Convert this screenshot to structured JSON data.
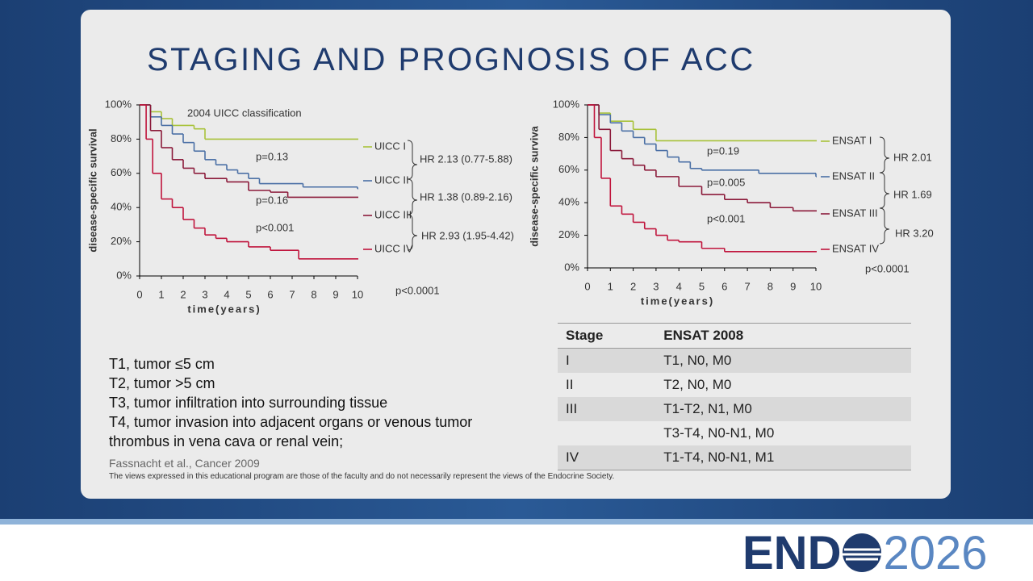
{
  "title": "STAGING AND PROGNOSIS OF ACC",
  "charts": [
    {
      "type": "line",
      "title": "2004 UICC classification",
      "x_label": "time(years)",
      "y_label": "disease-specific survival",
      "xlim": [
        0,
        10
      ],
      "ylim": [
        0,
        100
      ],
      "xticks": [
        0,
        1,
        2,
        3,
        4,
        5,
        6,
        7,
        8,
        9,
        10
      ],
      "yticks": [
        {
          "value": 0,
          "label": "0%"
        },
        {
          "value": 20,
          "label": "20%"
        },
        {
          "value": 40,
          "label": "40%"
        },
        {
          "value": 60,
          "label": "60%"
        },
        {
          "value": 80,
          "label": "80%"
        },
        {
          "value": 100,
          "label": "100%"
        }
      ],
      "series": [
        {
          "name": "UICC I",
          "color": "#a8c23a",
          "x": [
            0,
            0.5,
            1,
            1.5,
            2.5,
            3,
            10
          ],
          "values": [
            100,
            96,
            92,
            88,
            86,
            80,
            80
          ]
        },
        {
          "name": "UICC II",
          "color": "#4a6fa5",
          "x": [
            0,
            0.5,
            1,
            1.5,
            2,
            2.5,
            3,
            3.5,
            4,
            4.5,
            5,
            5.5,
            7.5,
            10
          ],
          "values": [
            100,
            93,
            88,
            83,
            78,
            73,
            68,
            65,
            62,
            60,
            57,
            54,
            52,
            51
          ]
        },
        {
          "name": "UICC III",
          "color": "#8b1a3a",
          "x": [
            0,
            0.5,
            1,
            1.5,
            2,
            2.5,
            3,
            4,
            5,
            6,
            6.8,
            10
          ],
          "values": [
            100,
            85,
            75,
            68,
            63,
            60,
            57,
            55,
            50,
            49,
            46,
            46
          ]
        },
        {
          "name": "UICC IV",
          "color": "#c0143c",
          "x": [
            0,
            0.3,
            0.6,
            1,
            1.5,
            2,
            2.5,
            3,
            3.5,
            4,
            5,
            6,
            7.3,
            10
          ],
          "values": [
            100,
            80,
            60,
            45,
            40,
            33,
            28,
            24,
            22,
            20,
            17,
            15,
            10,
            10
          ]
        }
      ],
      "annotations": [
        "p=0.13",
        "p=0.16",
        "p<0.001",
        "HR 2.13 (0.77-5.88)",
        "HR 1.38 (0.89-2.16)",
        "HR 2.93 (1.95-4.42)",
        "p<0.0001"
      ]
    },
    {
      "type": "line",
      "x_label": "time(years)",
      "y_label": "disease-specific surviva",
      "xlim": [
        0,
        10
      ],
      "ylim": [
        0,
        100
      ],
      "xticks": [
        0,
        1,
        2,
        3,
        4,
        5,
        6,
        7,
        8,
        9,
        10
      ],
      "yticks": [
        {
          "value": 0,
          "label": "0%"
        },
        {
          "value": 20,
          "label": "20%"
        },
        {
          "value": 40,
          "label": "40%"
        },
        {
          "value": 60,
          "label": "60%"
        },
        {
          "value": 80,
          "label": "80%"
        },
        {
          "value": 100,
          "label": "100%"
        }
      ],
      "series": [
        {
          "name": "ENSAT I",
          "color": "#a8c23a",
          "x": [
            0,
            0.5,
            1,
            2,
            3,
            10
          ],
          "values": [
            100,
            95,
            90,
            85,
            78,
            78
          ]
        },
        {
          "name": "ENSAT II",
          "color": "#4a6fa5",
          "x": [
            0,
            0.5,
            1,
            1.5,
            2,
            2.5,
            3,
            3.5,
            4,
            4.5,
            5,
            7.5,
            10
          ],
          "values": [
            100,
            94,
            89,
            84,
            80,
            76,
            72,
            68,
            65,
            61,
            60,
            58,
            56
          ]
        },
        {
          "name": "ENSAT III",
          "color": "#8b1a3a",
          "x": [
            0,
            0.5,
            1,
            1.5,
            2,
            2.5,
            3,
            4,
            5,
            6,
            7,
            8,
            9,
            10
          ],
          "values": [
            100,
            85,
            72,
            67,
            63,
            60,
            56,
            50,
            45,
            42,
            40,
            37,
            35,
            35
          ]
        },
        {
          "name": "ENSAT IV",
          "color": "#c0143c",
          "x": [
            0,
            0.3,
            0.6,
            1,
            1.5,
            2,
            2.5,
            3,
            3.5,
            4,
            5,
            6,
            10
          ],
          "values": [
            100,
            80,
            55,
            38,
            33,
            28,
            24,
            20,
            17,
            16,
            12,
            10,
            10
          ]
        }
      ],
      "annotations": [
        "p=0.19",
        "p=0.005",
        "p<0.001",
        "HR 2.01",
        "HR 1.69",
        "HR 3.20",
        "p<0.0001"
      ]
    }
  ],
  "stages": [
    "T1, tumor ≤5 cm",
    "T2, tumor >5 cm",
    "T3, tumor infiltration into surrounding tissue",
    "T4, tumor invasion into adjacent organs or venous tumor thrombus in vena cava or renal vein;"
  ],
  "citation": "Fassnacht et al., Cancer 2009",
  "table": {
    "header": [
      "Stage",
      "ENSAT 2008"
    ],
    "rows": [
      [
        "I",
        "T1, N0, M0"
      ],
      [
        "II",
        "T2, N0, M0"
      ],
      [
        "III",
        "T1-T2, N1, M0"
      ],
      [
        null,
        "T3-T4, N0-N1, M0"
      ],
      [
        "IV",
        "T1-T4, N0-N1, M1"
      ]
    ]
  },
  "disclaimer": "The views expressed in this educational program are those of the faculty and do not necessarily represent the views of the Endocrine Society.",
  "logo": {
    "brand": "END",
    "year": "2026"
  }
}
